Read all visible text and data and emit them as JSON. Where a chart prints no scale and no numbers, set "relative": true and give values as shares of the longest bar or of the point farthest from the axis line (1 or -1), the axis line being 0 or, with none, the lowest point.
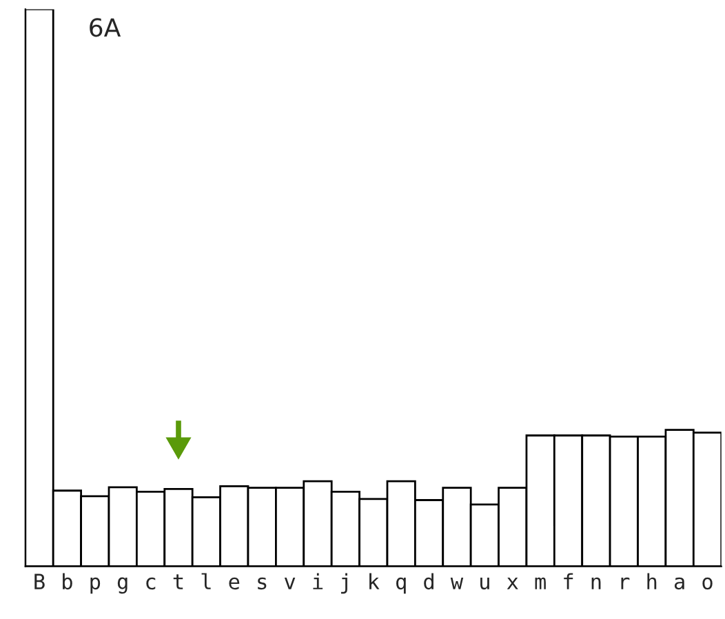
{
  "chart_data": {
    "type": "bar",
    "title": "6A",
    "relative": true,
    "categories": [
      "B",
      "b",
      "p",
      "g",
      "c",
      "t",
      "l",
      "e",
      "s",
      "v",
      "i",
      "j",
      "k",
      "q",
      "d",
      "w",
      "u",
      "x",
      "m",
      "f",
      "n",
      "r",
      "h",
      "a",
      "o"
    ],
    "values": [
      1,
      0.136,
      0.126,
      0.142,
      0.134,
      0.139,
      0.124,
      0.144,
      0.141,
      0.141,
      0.153,
      0.134,
      0.121,
      0.153,
      0.119,
      0.141,
      0.111,
      0.141,
      0.235,
      0.235,
      0.235,
      0.233,
      0.233,
      0.245,
      0.24
    ],
    "color": "#ffffff",
    "legend": false,
    "grid": false
  }
}
